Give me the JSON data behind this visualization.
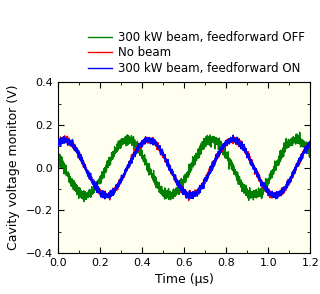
{
  "title": "",
  "xlabel": "Time (μs)",
  "ylabel": "Cavity voltage monitor (V)",
  "xlim": [
    0,
    1.2
  ],
  "ylim": [
    -0.4,
    0.4
  ],
  "xticks": [
    0,
    0.2,
    0.4,
    0.6,
    0.8,
    1.0,
    1.2
  ],
  "yticks": [
    -0.4,
    -0.2,
    0,
    0.2,
    0.4
  ],
  "background_color": "#fffff0",
  "legend": [
    "No beam",
    "300 kW beam, feedforward OFF",
    "300 kW beam, feedforward ON"
  ],
  "colors": [
    "red",
    "#008000",
    "blue"
  ],
  "amplitude": 0.13,
  "frequency": 2.5,
  "noise_std_rb": 0.008,
  "noise_std_g": 0.012,
  "n_points": 2000,
  "linewidth": 1.0,
  "figsize": [
    3.2,
    2.94
  ],
  "dpi": 100,
  "legend_fontsize": 8.5,
  "axis_fontsize": 9,
  "tick_fontsize": 8
}
